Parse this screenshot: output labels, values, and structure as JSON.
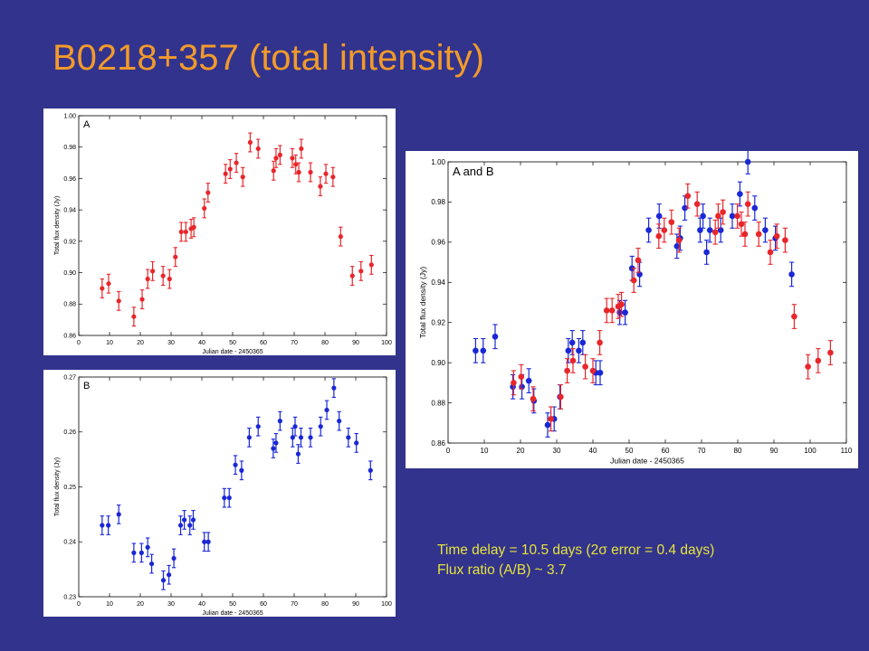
{
  "title": "B0218+357 (total intensity)",
  "notes": {
    "delay_prefix": "Time delay = 10.5 days (2",
    "delay_symbol": "σ",
    "delay_suffix": " error = 0.4 days)",
    "ratio": "Flux ratio (A/B) ~ 3.7"
  },
  "colors": {
    "background": "#32338d",
    "title": "#f29a2a",
    "notes": "#e5e33b",
    "A": "#e8262b",
    "B": "#1a27d6"
  },
  "chart_data": [
    {
      "id": "a",
      "type": "scatter",
      "label": "A",
      "xlabel": "Julian date - 2450365",
      "ylabel": "Total flux density (Jy)",
      "xlim": [
        0,
        100
      ],
      "ylim": [
        0.86,
        1.0
      ],
      "xticks": [
        0,
        10,
        20,
        30,
        40,
        50,
        60,
        70,
        80,
        90,
        100
      ],
      "yticks": [
        0.86,
        0.88,
        0.9,
        0.92,
        0.94,
        0.96,
        0.98,
        1.0
      ],
      "ytick_decimals": 2,
      "series": [
        {
          "key": "A",
          "color": "#e8262b",
          "x": [
            7.6,
            9.7,
            13,
            17.9,
            20.6,
            22.4,
            24,
            27.4,
            29.5,
            31.4,
            33.3,
            34.8,
            36.5,
            37.4,
            40.8,
            42,
            47.7,
            49.2,
            51.2,
            53.3,
            55.7,
            58.3,
            63.3,
            64.1,
            65.4,
            69.4,
            70.5,
            71.5,
            72.3,
            75.3,
            78.5,
            80.3,
            82.6,
            85.1,
            88.9,
            91.7,
            95.1
          ],
          "y": [
            0.89,
            0.893,
            0.882,
            0.872,
            0.883,
            0.896,
            0.901,
            0.898,
            0.896,
            0.91,
            0.926,
            0.926,
            0.928,
            0.929,
            0.941,
            0.951,
            0.963,
            0.966,
            0.97,
            0.961,
            0.983,
            0.979,
            0.965,
            0.973,
            0.975,
            0.973,
            0.969,
            0.964,
            0.979,
            0.964,
            0.955,
            0.963,
            0.961,
            0.923,
            0.898,
            0.901,
            0.905
          ],
          "err": 0.006
        }
      ]
    },
    {
      "id": "b",
      "type": "scatter",
      "label": "B",
      "xlabel": "Julian date - 2450365",
      "ylabel": "Total flux density (Jy)",
      "xlim": [
        0,
        100
      ],
      "ylim": [
        0.23,
        0.27
      ],
      "xticks": [
        0,
        10,
        20,
        30,
        40,
        50,
        60,
        70,
        80,
        90,
        100
      ],
      "yticks": [
        0.23,
        0.24,
        0.25,
        0.26,
        0.27
      ],
      "ytick_decimals": 2,
      "series": [
        {
          "key": "B",
          "color": "#1a27d6",
          "x": [
            7.6,
            9.6,
            13,
            17.9,
            20.4,
            22.4,
            23.7,
            27.5,
            29.3,
            30.9,
            33.1,
            34.3,
            36.1,
            37.2,
            40.8,
            42.1,
            47.3,
            48.9,
            50.9,
            52.9,
            55.4,
            58.3,
            63.2,
            64.1,
            65.4,
            69.5,
            70.3,
            71.3,
            72.2,
            75.3,
            78.6,
            80.6,
            82.9,
            84.6,
            87.6,
            90.2,
            94.8
          ],
          "y": [
            0.243,
            0.243,
            0.245,
            0.238,
            0.238,
            0.239,
            0.236,
            0.233,
            0.234,
            0.237,
            0.243,
            0.244,
            0.243,
            0.244,
            0.24,
            0.24,
            0.248,
            0.248,
            0.254,
            0.253,
            0.259,
            0.261,
            0.257,
            0.258,
            0.262,
            0.259,
            0.261,
            0.256,
            0.259,
            0.259,
            0.261,
            0.264,
            0.268,
            0.262,
            0.259,
            0.258,
            0.253
          ],
          "err": 0.0017
        }
      ]
    },
    {
      "id": "ab",
      "type": "scatter",
      "label": "A and B",
      "xlabel": "Julian date - 2450365",
      "ylabel": "Total flux density (Jy)",
      "xlim": [
        0,
        110
      ],
      "ylim": [
        0.86,
        1.0
      ],
      "xticks": [
        0,
        10,
        20,
        30,
        40,
        50,
        60,
        70,
        80,
        90,
        100,
        110
      ],
      "yticks": [
        0.86,
        0.88,
        0.9,
        0.92,
        0.94,
        0.96,
        0.98,
        1.0
      ],
      "ytick_decimals": 2,
      "series": [
        {
          "key": "B",
          "color": "#1a27d6",
          "x": [
            7.6,
            9.7,
            13,
            17.9,
            20.4,
            22.3,
            23.7,
            27.5,
            29.3,
            30.9,
            33.2,
            34.3,
            36.1,
            37.2,
            40.8,
            42,
            47.4,
            48.9,
            50.8,
            52.9,
            55.4,
            58.3,
            63.2,
            64.1,
            65.4,
            69.6,
            70.4,
            71.4,
            72.3,
            75.3,
            78.5,
            80.6,
            82.8,
            84.7,
            87.6,
            90.4,
            94.9
          ],
          "y": [
            0.906,
            0.906,
            0.913,
            0.888,
            0.888,
            0.891,
            0.881,
            0.869,
            0.872,
            0.883,
            0.906,
            0.91,
            0.906,
            0.91,
            0.895,
            0.895,
            0.925,
            0.925,
            0.947,
            0.944,
            0.966,
            0.973,
            0.958,
            0.962,
            0.977,
            0.966,
            0.973,
            0.955,
            0.966,
            0.966,
            0.973,
            0.984,
            1.0,
            0.977,
            0.966,
            0.962,
            0.944
          ],
          "err": 0.006
        },
        {
          "key": "A",
          "color": "#e8262b",
          "x": [
            18.1,
            20.2,
            23.5,
            28.4,
            31.1,
            32.9,
            34.5,
            37.9,
            40,
            41.9,
            43.8,
            45.3,
            47,
            47.9,
            51.3,
            52.5,
            58.2,
            59.7,
            61.7,
            63.8,
            66.2,
            68.8,
            73.8,
            74.6,
            75.9,
            79.9,
            81,
            82,
            82.8,
            85.8,
            89,
            90.8,
            93.1,
            95.6,
            99.4,
            102.2,
            105.6
          ],
          "y": [
            0.89,
            0.893,
            0.882,
            0.872,
            0.883,
            0.896,
            0.901,
            0.898,
            0.896,
            0.91,
            0.926,
            0.926,
            0.928,
            0.929,
            0.941,
            0.951,
            0.963,
            0.966,
            0.97,
            0.961,
            0.983,
            0.979,
            0.965,
            0.973,
            0.975,
            0.973,
            0.969,
            0.964,
            0.979,
            0.964,
            0.955,
            0.963,
            0.961,
            0.923,
            0.898,
            0.901,
            0.905
          ],
          "err": 0.006
        }
      ]
    }
  ]
}
